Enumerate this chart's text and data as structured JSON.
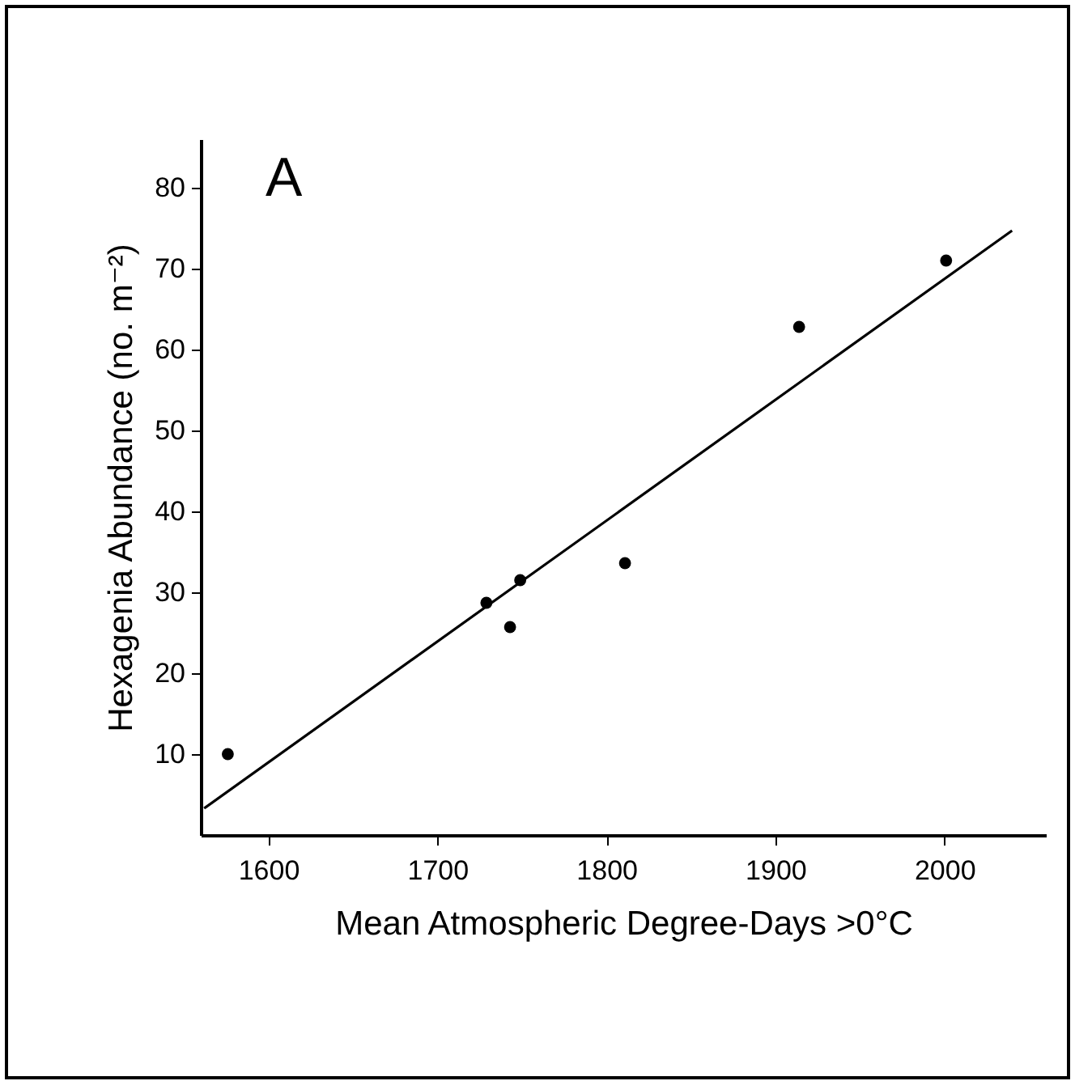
{
  "chart_data": {
    "type": "scatter",
    "xlabel": "Mean Atmospheric Degree-Days  >0°C",
    "ylabel": "Hexagenia  Abundance  (no. m⁻²)",
    "annotations": [
      "A"
    ],
    "xlim": [
      1560,
      2060
    ],
    "xticks": [
      1600,
      1700,
      1800,
      1900,
      2000
    ],
    "ylim": [
      0,
      86
    ],
    "yticks": [
      10,
      20,
      30,
      40,
      50,
      60,
      70,
      80
    ],
    "grid": false,
    "series": [
      {
        "marker": "circle",
        "color": "#000000",
        "x": [
          1576,
          1729,
          1743,
          1749,
          1811,
          1914,
          2001
        ],
        "values": [
          10,
          28.7,
          25.7,
          31.5,
          33.6,
          62.8,
          71
        ]
      },
      {
        "type": "line",
        "color": "#000000",
        "line_style": "solid",
        "x": [
          1562,
          2040
        ],
        "values": [
          3.3,
          74.7
        ]
      }
    ]
  }
}
